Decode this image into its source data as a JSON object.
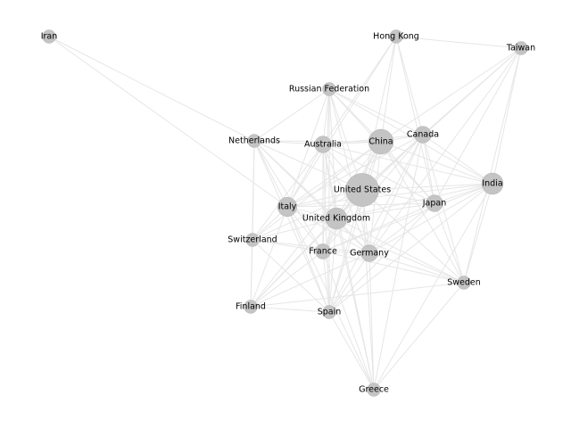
{
  "colors": {
    "background": "#ffffff",
    "edge": "#e6e6e6",
    "node": "#c4c4c4"
  },
  "chart_data": {
    "type": "network",
    "nodes": [
      {
        "id": "Iran",
        "label": "Iran",
        "weight": 1
      },
      {
        "id": "Hong Kong",
        "label": "Hong Kong",
        "weight": 1
      },
      {
        "id": "Taiwan",
        "label": "Taiwan",
        "weight": 1
      },
      {
        "id": "Russian Federation",
        "label": "Russian Federation",
        "weight": 1
      },
      {
        "id": "Netherlands",
        "label": "Netherlands",
        "weight": 1
      },
      {
        "id": "Australia",
        "label": "Australia",
        "weight": 2
      },
      {
        "id": "China",
        "label": "China",
        "weight": 6
      },
      {
        "id": "Canada",
        "label": "Canada",
        "weight": 2
      },
      {
        "id": "United States",
        "label": "United States",
        "weight": 12
      },
      {
        "id": "India",
        "label": "India",
        "weight": 4
      },
      {
        "id": "Italy",
        "label": "Italy",
        "weight": 3
      },
      {
        "id": "Japan",
        "label": "Japan",
        "weight": 2
      },
      {
        "id": "United Kingdom",
        "label": "United Kingdom",
        "weight": 4
      },
      {
        "id": "Switzerland",
        "label": "Switzerland",
        "weight": 1
      },
      {
        "id": "France",
        "label": "France",
        "weight": 1.5
      },
      {
        "id": "Germany",
        "label": "Germany",
        "weight": 2
      },
      {
        "id": "Sweden",
        "label": "Sweden",
        "weight": 1
      },
      {
        "id": "Finland",
        "label": "Finland",
        "weight": 1
      },
      {
        "id": "Spain",
        "label": "Spain",
        "weight": 1
      },
      {
        "id": "Greece",
        "label": "Greece",
        "weight": 1
      }
    ],
    "edges": [
      [
        "Iran",
        "Netherlands"
      ],
      [
        "Iran",
        "Italy"
      ],
      [
        "Hong Kong",
        "Taiwan"
      ],
      [
        "Hong Kong",
        "China"
      ],
      [
        "Hong Kong",
        "Canada"
      ],
      [
        "Hong Kong",
        "Australia"
      ],
      [
        "Hong Kong",
        "United States"
      ],
      [
        "Hong Kong",
        "Japan"
      ],
      [
        "Hong Kong",
        "Italy"
      ],
      [
        "Taiwan",
        "China"
      ],
      [
        "Taiwan",
        "Canada"
      ],
      [
        "Taiwan",
        "Japan"
      ],
      [
        "Taiwan",
        "United States"
      ],
      [
        "Taiwan",
        "India"
      ],
      [
        "Taiwan",
        "Sweden"
      ],
      [
        "Taiwan",
        "Germany"
      ],
      [
        "Russian Federation",
        "Netherlands"
      ],
      [
        "Russian Federation",
        "Australia"
      ],
      [
        "Russian Federation",
        "China"
      ],
      [
        "Russian Federation",
        "Canada"
      ],
      [
        "Russian Federation",
        "United States"
      ],
      [
        "Russian Federation",
        "Italy"
      ],
      [
        "Russian Federation",
        "United Kingdom"
      ],
      [
        "Russian Federation",
        "France"
      ],
      [
        "Russian Federation",
        "Germany"
      ],
      [
        "Russian Federation",
        "Japan"
      ],
      [
        "Russian Federation",
        "India"
      ],
      [
        "Russian Federation",
        "Spain"
      ],
      [
        "Netherlands",
        "Australia"
      ],
      [
        "Netherlands",
        "China"
      ],
      [
        "Netherlands",
        "United States"
      ],
      [
        "Netherlands",
        "Italy"
      ],
      [
        "Netherlands",
        "United Kingdom"
      ],
      [
        "Netherlands",
        "Switzerland"
      ],
      [
        "Netherlands",
        "France"
      ],
      [
        "Netherlands",
        "Germany"
      ],
      [
        "Netherlands",
        "Finland"
      ],
      [
        "Netherlands",
        "Spain"
      ],
      [
        "Australia",
        "China"
      ],
      [
        "Australia",
        "Canada"
      ],
      [
        "Australia",
        "United States"
      ],
      [
        "Australia",
        "Italy"
      ],
      [
        "Australia",
        "United Kingdom"
      ],
      [
        "Australia",
        "France"
      ],
      [
        "Australia",
        "Germany"
      ],
      [
        "Australia",
        "Japan"
      ],
      [
        "Australia",
        "India"
      ],
      [
        "Australia",
        "Switzerland"
      ],
      [
        "Australia",
        "Spain"
      ],
      [
        "Australia",
        "Greece"
      ],
      [
        "China",
        "Canada"
      ],
      [
        "China",
        "United States"
      ],
      [
        "China",
        "India"
      ],
      [
        "China",
        "Japan"
      ],
      [
        "China",
        "United Kingdom"
      ],
      [
        "China",
        "Italy"
      ],
      [
        "China",
        "France"
      ],
      [
        "China",
        "Germany"
      ],
      [
        "China",
        "Sweden"
      ],
      [
        "China",
        "Finland"
      ],
      [
        "China",
        "Spain"
      ],
      [
        "China",
        "Switzerland"
      ],
      [
        "Canada",
        "United States"
      ],
      [
        "Canada",
        "India"
      ],
      [
        "Canada",
        "Japan"
      ],
      [
        "Canada",
        "United Kingdom"
      ],
      [
        "Canada",
        "Italy"
      ],
      [
        "Canada",
        "France"
      ],
      [
        "Canada",
        "Germany"
      ],
      [
        "Canada",
        "Sweden"
      ],
      [
        "Canada",
        "Greece"
      ],
      [
        "Canada",
        "Spain"
      ],
      [
        "United States",
        "India"
      ],
      [
        "United States",
        "Japan"
      ],
      [
        "United States",
        "United Kingdom"
      ],
      [
        "United States",
        "Italy"
      ],
      [
        "United States",
        "France"
      ],
      [
        "United States",
        "Germany"
      ],
      [
        "United States",
        "Switzerland"
      ],
      [
        "United States",
        "Sweden"
      ],
      [
        "United States",
        "Finland"
      ],
      [
        "United States",
        "Spain"
      ],
      [
        "United States",
        "Greece"
      ],
      [
        "India",
        "Japan"
      ],
      [
        "India",
        "United Kingdom"
      ],
      [
        "India",
        "Italy"
      ],
      [
        "India",
        "France"
      ],
      [
        "India",
        "Germany"
      ],
      [
        "India",
        "Sweden"
      ],
      [
        "India",
        "Spain"
      ],
      [
        "India",
        "Greece"
      ],
      [
        "Italy",
        "United Kingdom"
      ],
      [
        "Italy",
        "France"
      ],
      [
        "Italy",
        "Germany"
      ],
      [
        "Italy",
        "Switzerland"
      ],
      [
        "Italy",
        "Spain"
      ],
      [
        "Italy",
        "Finland"
      ],
      [
        "Italy",
        "Japan"
      ],
      [
        "Italy",
        "Greece"
      ],
      [
        "Italy",
        "Sweden"
      ],
      [
        "Japan",
        "United Kingdom"
      ],
      [
        "Japan",
        "Germany"
      ],
      [
        "Japan",
        "France"
      ],
      [
        "Japan",
        "Sweden"
      ],
      [
        "Japan",
        "Spain"
      ],
      [
        "United Kingdom",
        "France"
      ],
      [
        "United Kingdom",
        "Germany"
      ],
      [
        "United Kingdom",
        "Switzerland"
      ],
      [
        "United Kingdom",
        "Spain"
      ],
      [
        "United Kingdom",
        "Sweden"
      ],
      [
        "United Kingdom",
        "Finland"
      ],
      [
        "United Kingdom",
        "Greece"
      ],
      [
        "Switzerland",
        "France"
      ],
      [
        "Switzerland",
        "Germany"
      ],
      [
        "Switzerland",
        "Finland"
      ],
      [
        "Switzerland",
        "Spain"
      ],
      [
        "France",
        "Germany"
      ],
      [
        "France",
        "Spain"
      ],
      [
        "France",
        "Finland"
      ],
      [
        "France",
        "Greece"
      ],
      [
        "France",
        "Sweden"
      ],
      [
        "Germany",
        "Sweden"
      ],
      [
        "Germany",
        "Spain"
      ],
      [
        "Germany",
        "Greece"
      ],
      [
        "Germany",
        "Finland"
      ],
      [
        "Sweden",
        "Finland"
      ],
      [
        "Sweden",
        "Greece"
      ],
      [
        "Finland",
        "Spain"
      ],
      [
        "Spain",
        "Greece"
      ]
    ]
  }
}
